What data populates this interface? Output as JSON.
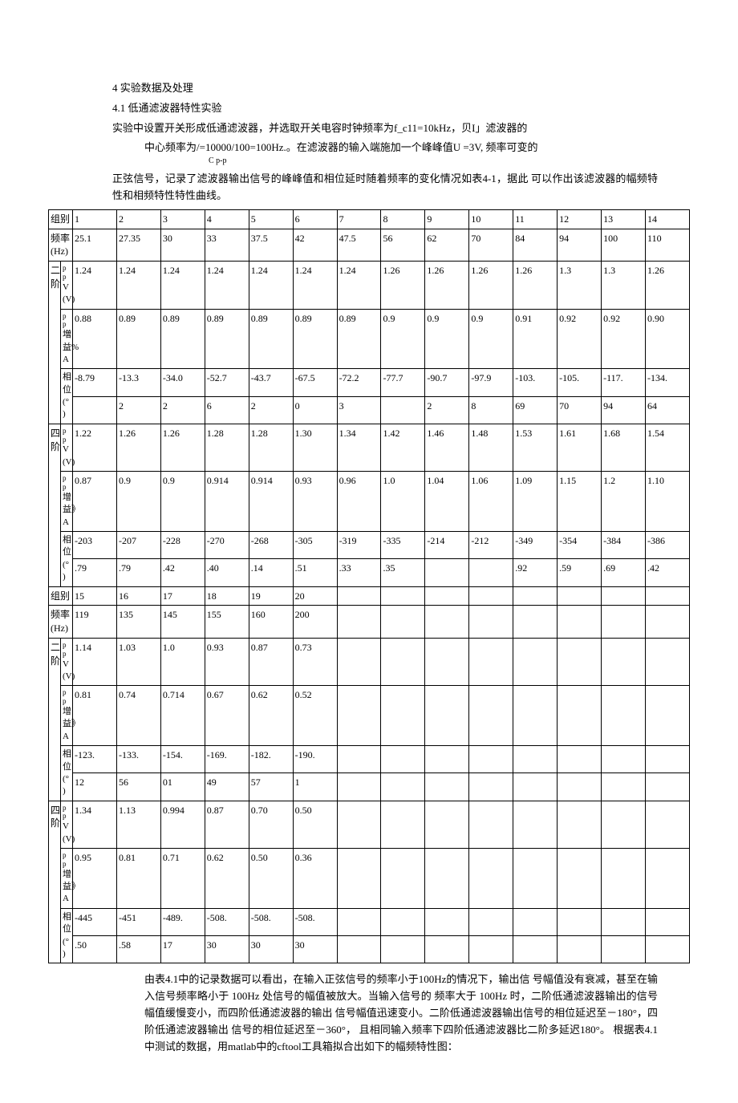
{
  "section": {
    "num": "4  实验数据及处理",
    "sub": "4.1 低通滤波器特性实验",
    "p1": "实验中设置开关形成低通滤波器，并选取开关电容时钟频率为f_c11=10kHz，贝I」滤波器的",
    "p2": "中心频率为/=10000/100=100Hz.。在滤波器的输入端施加一个峰峰值U =3V, 频率可变的",
    "p2sub": "C p-p",
    "p3": "正弦信号，记录了滤波器输出信号的峰峰值和相位延时随着频率的变化情况如表4-1，据此   可以作出该滤波器的幅频特性和相频特性特性曲线。"
  },
  "labels": {
    "group": "组别",
    "freq": "频率(Hz)",
    "order2": "二 阶",
    "order4": "四 阶",
    "vpp": "V (V)",
    "vpp_sup": "p p",
    "gain": "增益》A",
    "gain_sup": "p p",
    "gain_alt_sup": "増益% A",
    "phase": "相位(°   )"
  },
  "t1": {
    "group": [
      "1",
      "2",
      "3",
      "4",
      "5",
      "6",
      "7",
      "8",
      "9",
      "10",
      "11",
      "12",
      "13",
      "14"
    ],
    "freq": [
      "25.1",
      "27.35",
      "30",
      "33",
      "37.5",
      "42",
      "47.5",
      "56",
      "62",
      "70",
      "84",
      "94",
      "100",
      "110"
    ],
    "o2_v": [
      "1.24",
      "1.24",
      "1.24",
      "1.24",
      "1.24",
      "1.24",
      "1.24",
      "1.26",
      "1.26",
      "1.26",
      "1.26",
      "1.3",
      "1.3",
      "1.26"
    ],
    "o2_g": [
      "0.88",
      "0.89",
      "0.89",
      "0.89",
      "0.89",
      "0.89",
      "0.89",
      "0.9",
      "0.9",
      "0.9",
      "0.91",
      "0.92",
      "0.92",
      "0.90"
    ],
    "o2_p_a": [
      "-8.79",
      "-13.3",
      "-34.0",
      "-52.7",
      "-43.7",
      "-67.5",
      "-72.2",
      "-77.7",
      "-90.7",
      "-97.9",
      "-103.",
      "-105.",
      "-117.",
      "-134."
    ],
    "o2_p_b": [
      "",
      "2",
      "2",
      "6",
      "2",
      "0",
      "3",
      "",
      "2",
      "8",
      "69",
      "70",
      "94",
      "64"
    ],
    "o4_v": [
      "1.22",
      "1.26",
      "1.26",
      "1.28",
      "1.28",
      "1.30",
      "1.34",
      "1.42",
      "1.46",
      "1.48",
      "1.53",
      "1.61",
      "1.68",
      "1.54"
    ],
    "o4_g": [
      "0.87",
      "0.9",
      "0.9",
      "0.914",
      "0.914",
      "0.93",
      "0.96",
      "1.0",
      "1.04",
      "1.06",
      "1.09",
      "1.15",
      "1.2",
      "1.10"
    ],
    "o4_p_a": [
      "-203",
      "-207",
      "-228",
      "-270",
      "-268",
      "-305",
      "-319",
      "-335",
      "-214",
      "-212",
      "-349",
      "-354",
      "-384",
      "-386"
    ],
    "o4_p_b": [
      ".79",
      ".79",
      ".42",
      ".40",
      ".14",
      ".51",
      ".33",
      ".35",
      "",
      "",
      ".92",
      ".59",
      ".69",
      ".42"
    ]
  },
  "t2": {
    "group": [
      "15",
      "16",
      "17",
      "18",
      "19",
      "20",
      "",
      "",
      "",
      "",
      "",
      "",
      "",
      ""
    ],
    "freq": [
      "119",
      "135",
      "145",
      "155",
      "160",
      "200",
      "",
      "",
      "",
      "",
      "",
      "",
      "",
      ""
    ],
    "o2_v": [
      "1.14",
      "1.03",
      "1.0",
      "0.93",
      "0.87",
      "0.73",
      "",
      "",
      "",
      "",
      "",
      "",
      "",
      ""
    ],
    "o2_g": [
      "0.81",
      "0.74",
      "0.714",
      "0.67",
      "0.62",
      "0.52",
      "",
      "",
      "",
      "",
      "",
      "",
      "",
      ""
    ],
    "o2_p_a": [
      "-123.",
      "-133.",
      "-154.",
      "-169.",
      "-182.",
      "-190.",
      "",
      "",
      "",
      "",
      "",
      "",
      "",
      ""
    ],
    "o2_p_b": [
      "12",
      "56",
      "01",
      "49",
      "57",
      "1",
      "",
      "",
      "",
      "",
      "",
      "",
      "",
      ""
    ],
    "o4_v": [
      "1.34",
      "1.13",
      "0.994",
      "0.87",
      "0.70",
      "0.50",
      "",
      "",
      "",
      "",
      "",
      "",
      "",
      ""
    ],
    "o4_g": [
      "0.95",
      "0.81",
      "0.71",
      "0.62",
      "0.50",
      "0.36",
      "",
      "",
      "",
      "",
      "",
      "",
      "",
      ""
    ],
    "o4_p_a": [
      "-445",
      "-451",
      "-489.",
      "-508.",
      "-508.",
      "-508.",
      "",
      "",
      "",
      "",
      "",
      "",
      "",
      ""
    ],
    "o4_p_b": [
      ".50",
      ".58",
      "17",
      "30",
      "30",
      "30",
      "",
      "",
      "",
      "",
      "",
      "",
      "",
      ""
    ]
  },
  "conclusion": "由表4.1中的记录数据可以看出，在输入正弦信号的频率小于100Hz的情况下，输出信 号幅值没有衰减，甚至在输入信号频率略小于 100Hz 处信号的幅值被放大。当输入信号的 频率大于 100Hz 时，二阶低通滤波器输出的信号幅值缓慢变小，而四阶低通滤波器的输出  信号幅值迅速变小。二阶低通滤波器输出信号的相位延迟至－180°，四阶低通滤波器输出  信号的相位延迟至－360°， 且相同输入频率下四阶低通滤波器比二阶多延迟180°。 根据表4.1中测试的数据，用matlab中的cftool工具箱拟合出如下的幅频特性图："
}
